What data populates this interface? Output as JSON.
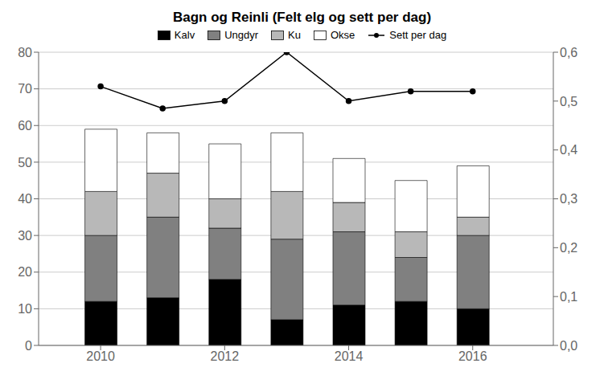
{
  "chart_data": {
    "type": "bar",
    "title": "Bagn og Reinli (Felt elg og sett per dag)",
    "stacked": true,
    "grid": true,
    "legend": "top",
    "x": [
      2010,
      2011,
      2012,
      2013,
      2014,
      2015,
      2016
    ],
    "xlim": [
      2009.0,
      2017.3
    ],
    "xticks": [
      2010,
      2012,
      2014,
      2016
    ],
    "ylim": [
      0,
      80
    ],
    "yticks": [
      0,
      10,
      20,
      30,
      40,
      50,
      60,
      70,
      80
    ],
    "y2lim": [
      0.0,
      0.6
    ],
    "y2ticks": [
      {
        "value": 0.0,
        "label": "0,0"
      },
      {
        "value": 0.1,
        "label": "0,1"
      },
      {
        "value": 0.2,
        "label": "0,2"
      },
      {
        "value": 0.3,
        "label": "0,3"
      },
      {
        "value": 0.4,
        "label": "0,4"
      },
      {
        "value": 0.5,
        "label": "0,5"
      },
      {
        "value": 0.6,
        "label": "0,6"
      }
    ],
    "series": [
      {
        "name": "Kalv",
        "color": "#000000",
        "values": [
          12,
          13,
          18,
          7,
          11,
          12,
          10
        ]
      },
      {
        "name": "Ungdyr",
        "color": "#808080",
        "values": [
          18,
          22,
          14,
          22,
          20,
          12,
          20
        ]
      },
      {
        "name": "Ku",
        "color": "#b8b8b8",
        "values": [
          12,
          12,
          8,
          13,
          8,
          7,
          5
        ]
      },
      {
        "name": "Okse",
        "color": "#ffffff",
        "values": [
          17,
          11,
          15,
          16,
          12,
          14,
          14
        ]
      },
      {
        "name": "Sett per dag",
        "type": "line",
        "axis": "y2",
        "color": "#000000",
        "marker": "circle",
        "values": [
          0.53,
          0.485,
          0.5,
          0.6,
          0.5,
          0.52,
          0.52
        ]
      }
    ]
  }
}
